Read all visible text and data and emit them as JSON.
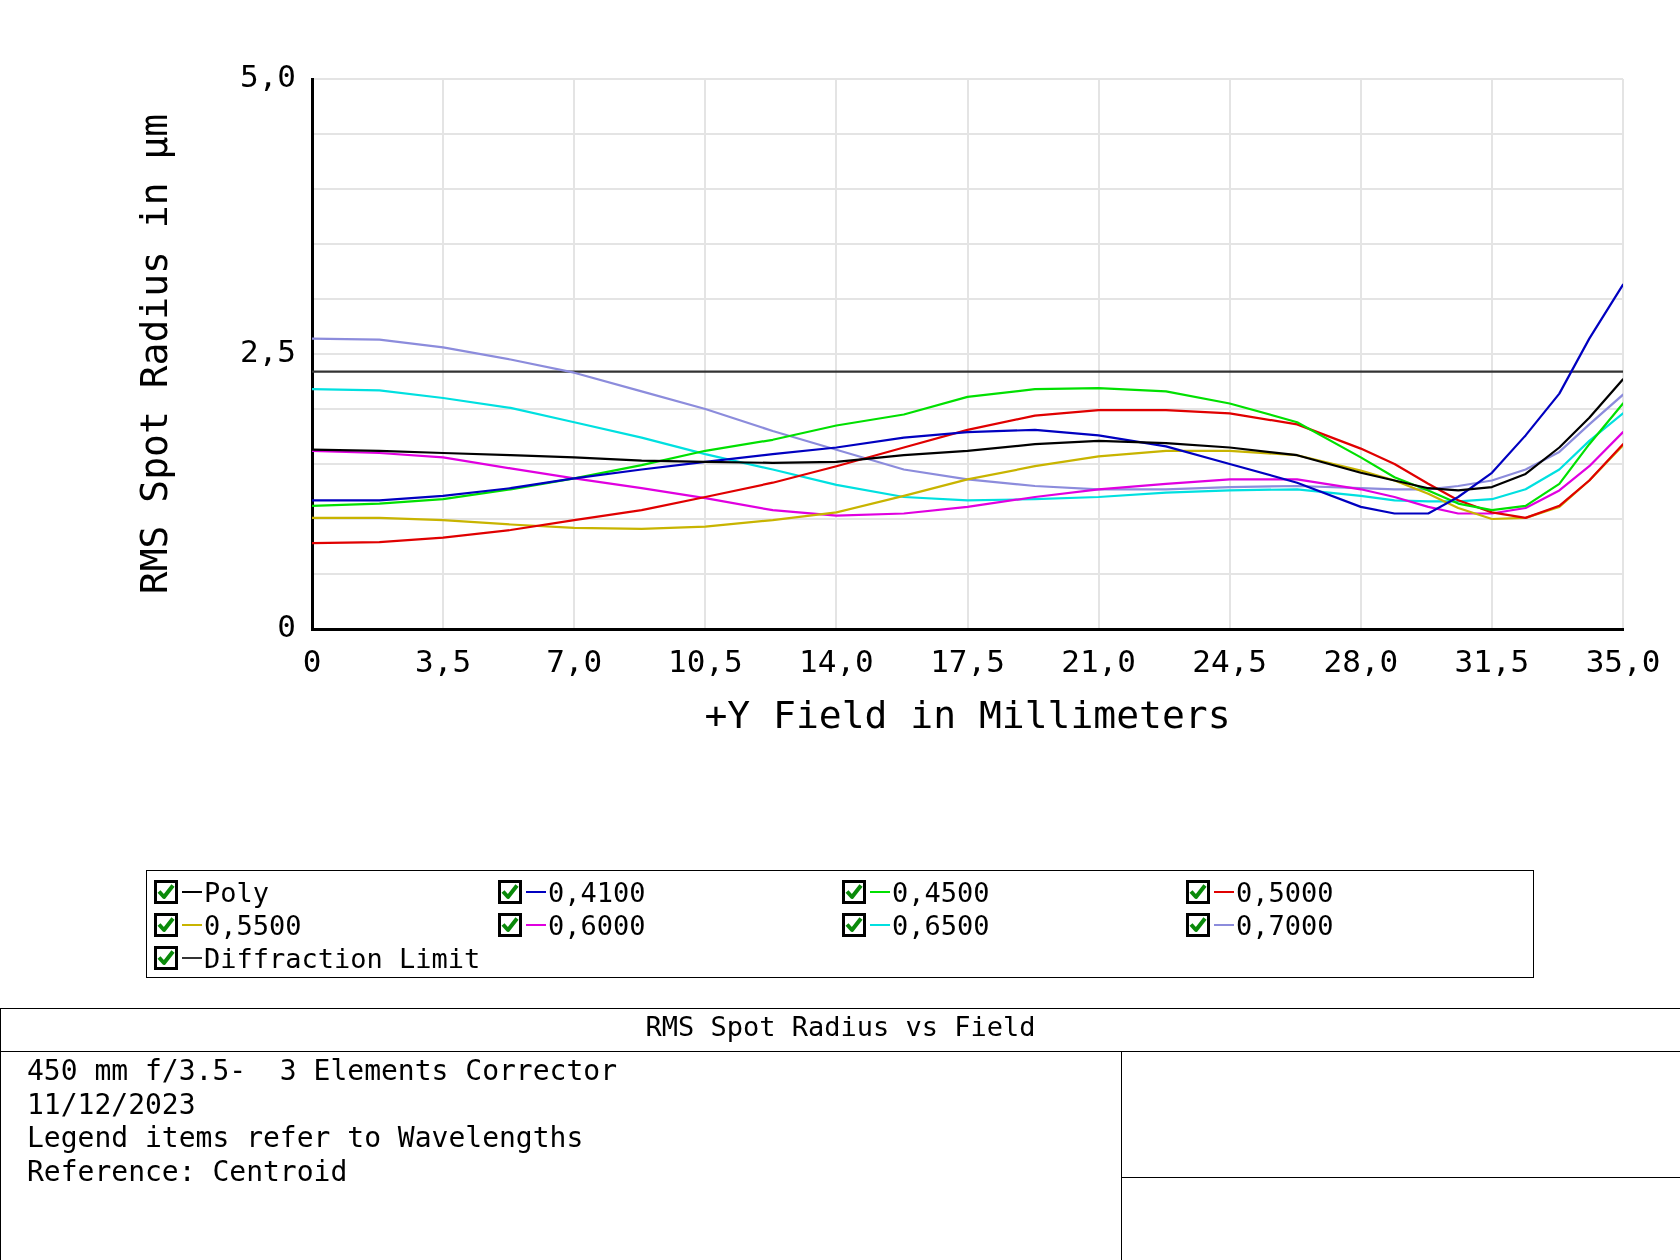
{
  "chart_data": {
    "type": "line",
    "title": "RMS Spot Radius vs Field",
    "xlabel": "+Y Field in Millimeters",
    "ylabel": "RMS Spot Radius in µm",
    "annotations": [
      "450 mm f/3.5-  3 Elements Corrector",
      "11/12/2023",
      "Legend items refer to Wavelengths",
      "Reference: Centroid"
    ],
    "x": [
      0,
      1.8,
      3.5,
      5.3,
      7,
      8.8,
      10.5,
      12.3,
      14,
      15.8,
      17.5,
      19.3,
      21,
      22.8,
      24.5,
      26.3,
      28,
      28.9,
      29.8,
      30.6,
      31.5,
      32.4,
      33.3,
      34.1,
      35
    ],
    "series": [
      {
        "name": "Poly",
        "color": "#000000",
        "values": [
          1.63,
          1.62,
          1.6,
          1.58,
          1.56,
          1.53,
          1.52,
          1.51,
          1.52,
          1.58,
          1.62,
          1.68,
          1.71,
          1.69,
          1.65,
          1.58,
          1.42,
          1.35,
          1.28,
          1.26,
          1.29,
          1.41,
          1.65,
          1.92,
          2.27
        ]
      },
      {
        "name": "0,4100",
        "color": "#0000c0",
        "values": [
          1.17,
          1.17,
          1.21,
          1.28,
          1.37,
          1.45,
          1.52,
          1.59,
          1.65,
          1.74,
          1.79,
          1.81,
          1.76,
          1.66,
          1.5,
          1.33,
          1.11,
          1.05,
          1.05,
          1.2,
          1.42,
          1.76,
          2.14,
          2.64,
          3.13
        ]
      },
      {
        "name": "0,4500",
        "color": "#00e000",
        "values": [
          1.12,
          1.14,
          1.18,
          1.27,
          1.37,
          1.49,
          1.62,
          1.72,
          1.85,
          1.95,
          2.11,
          2.18,
          2.19,
          2.16,
          2.05,
          1.88,
          1.56,
          1.38,
          1.26,
          1.14,
          1.08,
          1.12,
          1.32,
          1.68,
          2.05
        ]
      },
      {
        "name": "0,5000",
        "color": "#e00000",
        "values": [
          0.78,
          0.79,
          0.83,
          0.9,
          0.99,
          1.08,
          1.2,
          1.33,
          1.48,
          1.65,
          1.81,
          1.94,
          1.99,
          1.99,
          1.96,
          1.86,
          1.64,
          1.5,
          1.32,
          1.17,
          1.06,
          1.01,
          1.12,
          1.35,
          1.68
        ]
      },
      {
        "name": "0,5500",
        "color": "#c8b400",
        "values": [
          1.01,
          1.01,
          0.99,
          0.95,
          0.92,
          0.91,
          0.93,
          0.99,
          1.06,
          1.21,
          1.36,
          1.48,
          1.57,
          1.62,
          1.62,
          1.58,
          1.44,
          1.35,
          1.23,
          1.1,
          1.0,
          1.01,
          1.11,
          1.35,
          1.67
        ]
      },
      {
        "name": "0,6000",
        "color": "#e000e0",
        "values": [
          1.62,
          1.6,
          1.56,
          1.46,
          1.37,
          1.28,
          1.19,
          1.08,
          1.03,
          1.05,
          1.11,
          1.2,
          1.27,
          1.32,
          1.36,
          1.36,
          1.27,
          1.2,
          1.11,
          1.05,
          1.05,
          1.1,
          1.26,
          1.48,
          1.79
        ]
      },
      {
        "name": "0,6500",
        "color": "#00e0e0",
        "values": [
          2.18,
          2.17,
          2.1,
          2.01,
          1.88,
          1.74,
          1.59,
          1.45,
          1.31,
          1.2,
          1.17,
          1.18,
          1.2,
          1.24,
          1.26,
          1.27,
          1.21,
          1.17,
          1.16,
          1.16,
          1.18,
          1.27,
          1.45,
          1.71,
          1.96
        ]
      },
      {
        "name": "0,7000",
        "color": "#8c8cdc",
        "values": [
          2.64,
          2.63,
          2.56,
          2.45,
          2.33,
          2.16,
          2.0,
          1.8,
          1.63,
          1.45,
          1.36,
          1.3,
          1.27,
          1.27,
          1.29,
          1.3,
          1.28,
          1.27,
          1.27,
          1.3,
          1.35,
          1.45,
          1.61,
          1.86,
          2.13
        ]
      },
      {
        "name": "Diffraction Limit",
        "color": "#333333",
        "x": [
          0,
          35
        ],
        "values": [
          2.34,
          2.34
        ]
      }
    ],
    "xlim": [
      0,
      35
    ],
    "xticks": [
      0,
      {
        "value": 3.5,
        "label": "3,5"
      },
      {
        "value": 7,
        "label": "7,0"
      },
      {
        "value": 10.5,
        "label": "10,5"
      },
      {
        "value": 14,
        "label": "14,0"
      },
      {
        "value": 17.5,
        "label": "17,5"
      },
      {
        "value": 21,
        "label": "21,0"
      },
      {
        "value": 24.5,
        "label": "24,5"
      },
      {
        "value": 28,
        "label": "28,0"
      },
      {
        "value": 31.5,
        "label": "31,5"
      },
      {
        "value": 35,
        "label": "35,0"
      }
    ],
    "ylim": [
      0,
      5
    ],
    "yticks": [
      0,
      {
        "value": 0.5,
        "label": null
      },
      {
        "value": 1,
        "label": null
      },
      {
        "value": 1.5,
        "label": null
      },
      {
        "value": 2,
        "label": null
      },
      {
        "value": 2.5,
        "label": "2,5"
      },
      {
        "value": 3,
        "label": null
      },
      {
        "value": 3.5,
        "label": null
      },
      {
        "value": 4,
        "label": null
      },
      {
        "value": 4.5,
        "label": null
      },
      {
        "value": 5,
        "label": "5,0"
      }
    ],
    "grid": true,
    "legend": "bottom",
    "marker": "none"
  }
}
